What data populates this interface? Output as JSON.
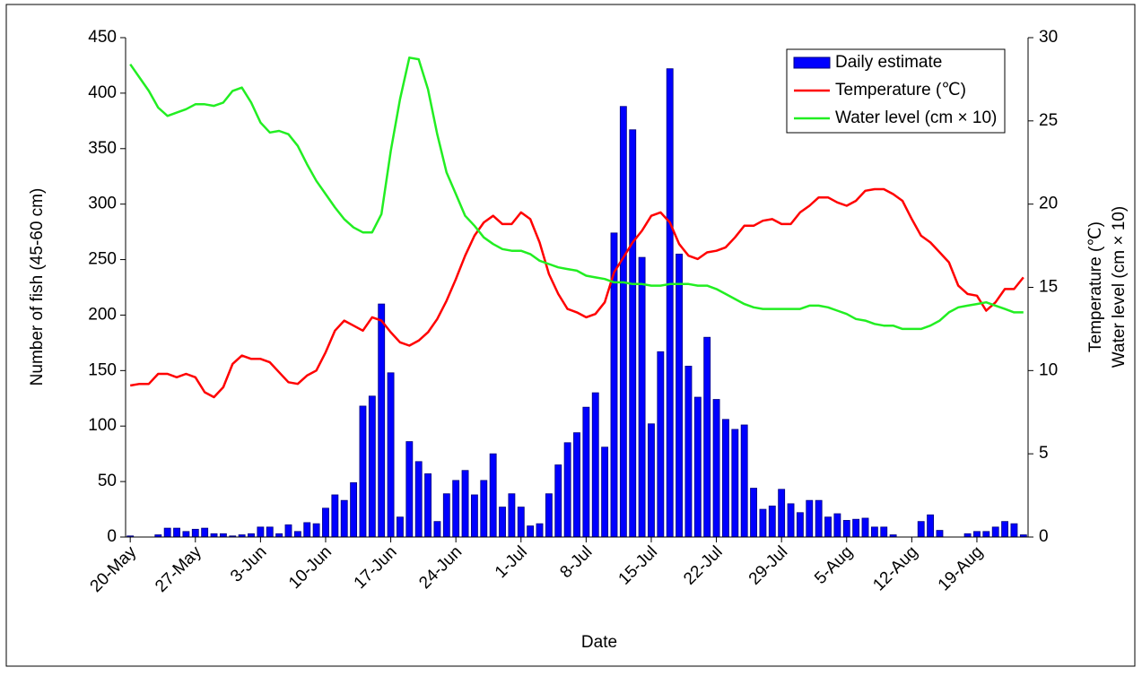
{
  "chart_data": {
    "type": "bar",
    "x_label": "Date",
    "y_label": "Number of fish (45-60 cm)",
    "y2_label": [
      "Temperature (℃)",
      "Water level (cm × 10)"
    ],
    "categories": [
      "20-May",
      null,
      null,
      null,
      null,
      null,
      null,
      "27-May",
      null,
      null,
      null,
      null,
      null,
      null,
      "3-Jun",
      null,
      null,
      null,
      null,
      null,
      null,
      "10-Jun",
      null,
      null,
      null,
      null,
      null,
      null,
      "17-Jun",
      null,
      null,
      null,
      null,
      null,
      null,
      "24-Jun",
      null,
      null,
      null,
      null,
      null,
      null,
      "1-Jul",
      null,
      null,
      null,
      null,
      null,
      null,
      "8-Jul",
      null,
      null,
      null,
      null,
      null,
      null,
      "15-Jul",
      null,
      null,
      null,
      null,
      null,
      null,
      "22-Jul",
      null,
      null,
      null,
      null,
      null,
      null,
      "29-Jul",
      null,
      null,
      null,
      null,
      null,
      null,
      "5-Aug",
      null,
      null,
      null,
      null,
      null,
      null,
      "12-Aug",
      null,
      null,
      null,
      null,
      null,
      null,
      "19-Aug",
      null,
      null,
      null,
      null,
      null
    ],
    "series": [
      {
        "name": "Daily estimate",
        "type": "bar",
        "color": "#0000ff",
        "values": [
          1,
          0,
          0,
          2,
          8,
          8,
          5,
          7,
          8,
          3,
          3,
          1,
          2,
          3,
          9,
          9,
          3,
          11,
          5,
          13,
          12,
          26,
          38,
          33,
          49,
          118,
          127,
          210,
          148,
          18,
          86,
          68,
          57,
          14,
          39,
          51,
          60,
          38,
          51,
          75,
          27,
          39,
          27,
          10,
          12,
          39,
          65,
          85,
          94,
          117,
          130,
          81,
          274,
          388,
          367,
          252,
          102,
          167,
          422,
          255,
          154,
          126,
          180,
          124,
          106,
          97,
          101,
          44,
          25,
          28,
          43,
          30,
          22,
          33,
          33,
          18,
          21,
          15,
          16,
          17,
          9,
          9,
          2,
          0,
          0,
          14,
          20,
          6,
          0,
          0,
          3,
          5,
          5,
          9,
          14,
          12,
          2
        ]
      },
      {
        "name": "Temperature (℃)",
        "type": "line",
        "axis": "y2",
        "color": "#ff0000",
        "values": [
          9.1,
          9.2,
          9.2,
          9.8,
          9.8,
          9.6,
          9.8,
          9.6,
          8.7,
          8.4,
          9.0,
          10.4,
          10.9,
          10.7,
          10.7,
          10.5,
          9.9,
          9.3,
          9.2,
          9.7,
          10.0,
          11.1,
          12.4,
          13.0,
          12.7,
          12.4,
          13.2,
          13.0,
          12.3,
          11.7,
          11.5,
          11.8,
          12.3,
          13.1,
          14.2,
          15.5,
          16.9,
          18.1,
          18.9,
          19.3,
          18.8,
          18.8,
          19.5,
          19.1,
          17.7,
          15.8,
          14.6,
          13.7,
          13.5,
          13.2,
          13.4,
          14.1,
          15.9,
          16.8,
          17.7,
          18.4,
          19.3,
          19.5,
          18.9,
          17.6,
          16.9,
          16.7,
          17.1,
          17.2,
          17.4,
          18.0,
          18.7,
          18.7,
          19.0,
          19.1,
          18.8,
          18.8,
          19.5,
          19.9,
          20.4,
          20.4,
          20.1,
          19.9,
          20.2,
          20.8,
          20.9,
          20.9,
          20.6,
          20.2,
          19.1,
          18.1,
          17.7,
          17.1,
          16.5,
          15.1,
          14.6,
          14.5,
          13.6,
          14.1,
          14.9,
          14.9,
          15.6
        ]
      },
      {
        "name": "Water level (cm × 10)",
        "type": "line",
        "axis": "y2",
        "color": "#22ee22",
        "values": [
          28.4,
          27.6,
          26.8,
          25.8,
          25.3,
          25.5,
          25.7,
          26.0,
          26.0,
          25.9,
          26.1,
          26.8,
          27.0,
          26.1,
          24.9,
          24.3,
          24.4,
          24.2,
          23.5,
          22.4,
          21.4,
          20.6,
          19.8,
          19.1,
          18.6,
          18.3,
          18.3,
          19.4,
          23.2,
          26.3,
          28.8,
          28.7,
          26.9,
          24.2,
          21.9,
          20.6,
          19.3,
          18.7,
          18.0,
          17.6,
          17.3,
          17.2,
          17.2,
          17.0,
          16.6,
          16.4,
          16.2,
          16.1,
          16.0,
          15.7,
          15.6,
          15.5,
          15.3,
          15.3,
          15.2,
          15.2,
          15.1,
          15.1,
          15.2,
          15.2,
          15.2,
          15.1,
          15.1,
          14.9,
          14.6,
          14.3,
          14.0,
          13.8,
          13.7,
          13.7,
          13.7,
          13.7,
          13.7,
          13.9,
          13.9,
          13.8,
          13.6,
          13.4,
          13.1,
          13.0,
          12.8,
          12.7,
          12.7,
          12.5,
          12.5,
          12.5,
          12.7,
          13.0,
          13.5,
          13.8,
          13.9,
          14.0,
          14.1,
          13.9,
          13.7,
          13.5,
          13.5
        ]
      }
    ],
    "ylim": [
      0,
      450
    ],
    "yticks": [
      0,
      50,
      100,
      150,
      200,
      250,
      300,
      350,
      400,
      450
    ],
    "y2lim": [
      0,
      30
    ],
    "y2ticks": [
      0,
      5,
      10,
      15,
      20,
      25,
      30
    ],
    "legend": "top-right",
    "grid": false
  }
}
